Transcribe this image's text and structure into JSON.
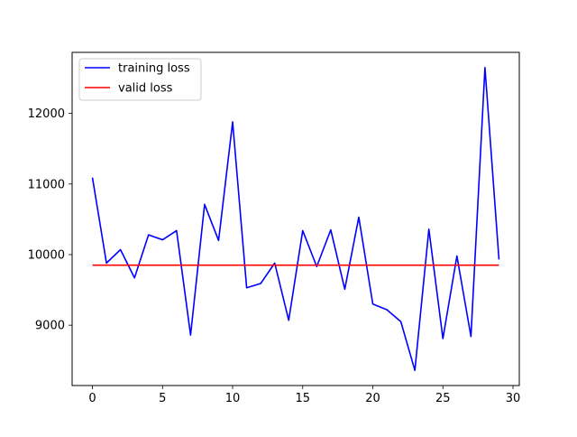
{
  "chart_data": {
    "type": "line",
    "x": [
      0,
      1,
      2,
      3,
      4,
      5,
      6,
      7,
      8,
      9,
      10,
      11,
      12,
      13,
      14,
      15,
      16,
      17,
      18,
      19,
      20,
      21,
      22,
      23,
      24,
      25,
      26,
      27,
      28,
      29
    ],
    "series": [
      {
        "name": "training loss",
        "color": "#0000ff",
        "values": [
          11090,
          9880,
          10070,
          9670,
          10280,
          10210,
          10340,
          8860,
          10710,
          10200,
          11880,
          9530,
          9590,
          9880,
          9070,
          10340,
          9830,
          10350,
          9510,
          10530,
          9300,
          9220,
          9050,
          8360,
          10360,
          8810,
          9980,
          8840,
          12650,
          9930
        ]
      },
      {
        "name": "valid loss",
        "color": "#ff0000",
        "values": [
          9850,
          9850,
          9850,
          9850,
          9850,
          9850,
          9850,
          9850,
          9850,
          9850,
          9850,
          9850,
          9850,
          9850,
          9850,
          9850,
          9850,
          9850,
          9850,
          9850,
          9850,
          9850,
          9850,
          9850,
          9850,
          9850,
          9850,
          9850,
          9850,
          9850
        ]
      }
    ],
    "xlim": [
      -1.45,
      30.45
    ],
    "ylim": [
      8145,
      12865
    ],
    "xticks": [
      0,
      5,
      10,
      15,
      20,
      25,
      30
    ],
    "yticks": [
      9000,
      10000,
      11000,
      12000
    ],
    "legend_placement": "top-left",
    "grid": false,
    "title": "",
    "xlabel": "",
    "ylabel": ""
  }
}
